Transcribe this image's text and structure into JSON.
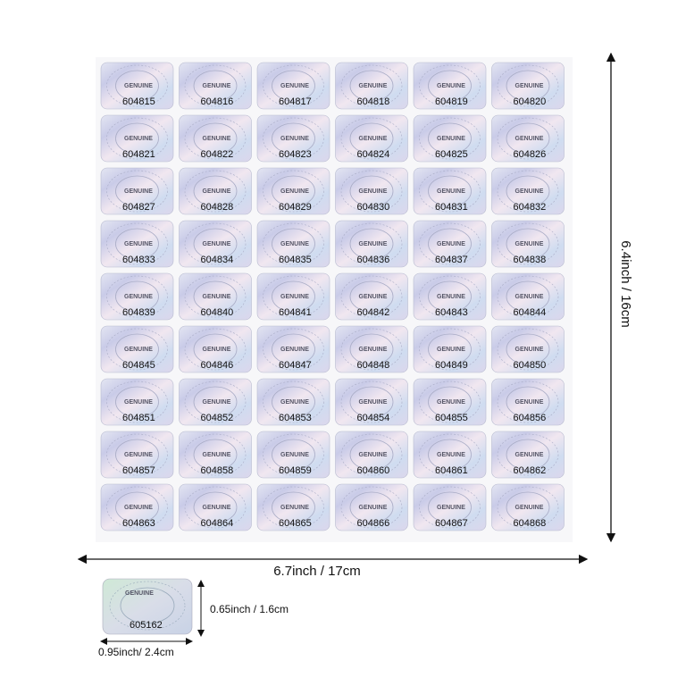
{
  "sheet": {
    "sticker_text": "GENUINE",
    "serials": [
      "604815",
      "604816",
      "604817",
      "604818",
      "604819",
      "604820",
      "604821",
      "604822",
      "604823",
      "604824",
      "604825",
      "604826",
      "604827",
      "604828",
      "604829",
      "604830",
      "604831",
      "604832",
      "604833",
      "604834",
      "604835",
      "604836",
      "604837",
      "604838",
      "604839",
      "604840",
      "604841",
      "604842",
      "604843",
      "604844",
      "604845",
      "604846",
      "604847",
      "604848",
      "604849",
      "604850",
      "604851",
      "604852",
      "604853",
      "604854",
      "604855",
      "604856",
      "604857",
      "604858",
      "604859",
      "604860",
      "604861",
      "604862",
      "604863",
      "604864",
      "604865",
      "604866",
      "604867",
      "604868"
    ]
  },
  "dimensions": {
    "height": "6.4inch / 16cm",
    "width": "6.7inch / 17cm"
  },
  "sample": {
    "text": "GENUINE",
    "serial": "605162",
    "height": "0.65inch / 1.6cm",
    "width": "0.95inch/ 2.4cm"
  }
}
